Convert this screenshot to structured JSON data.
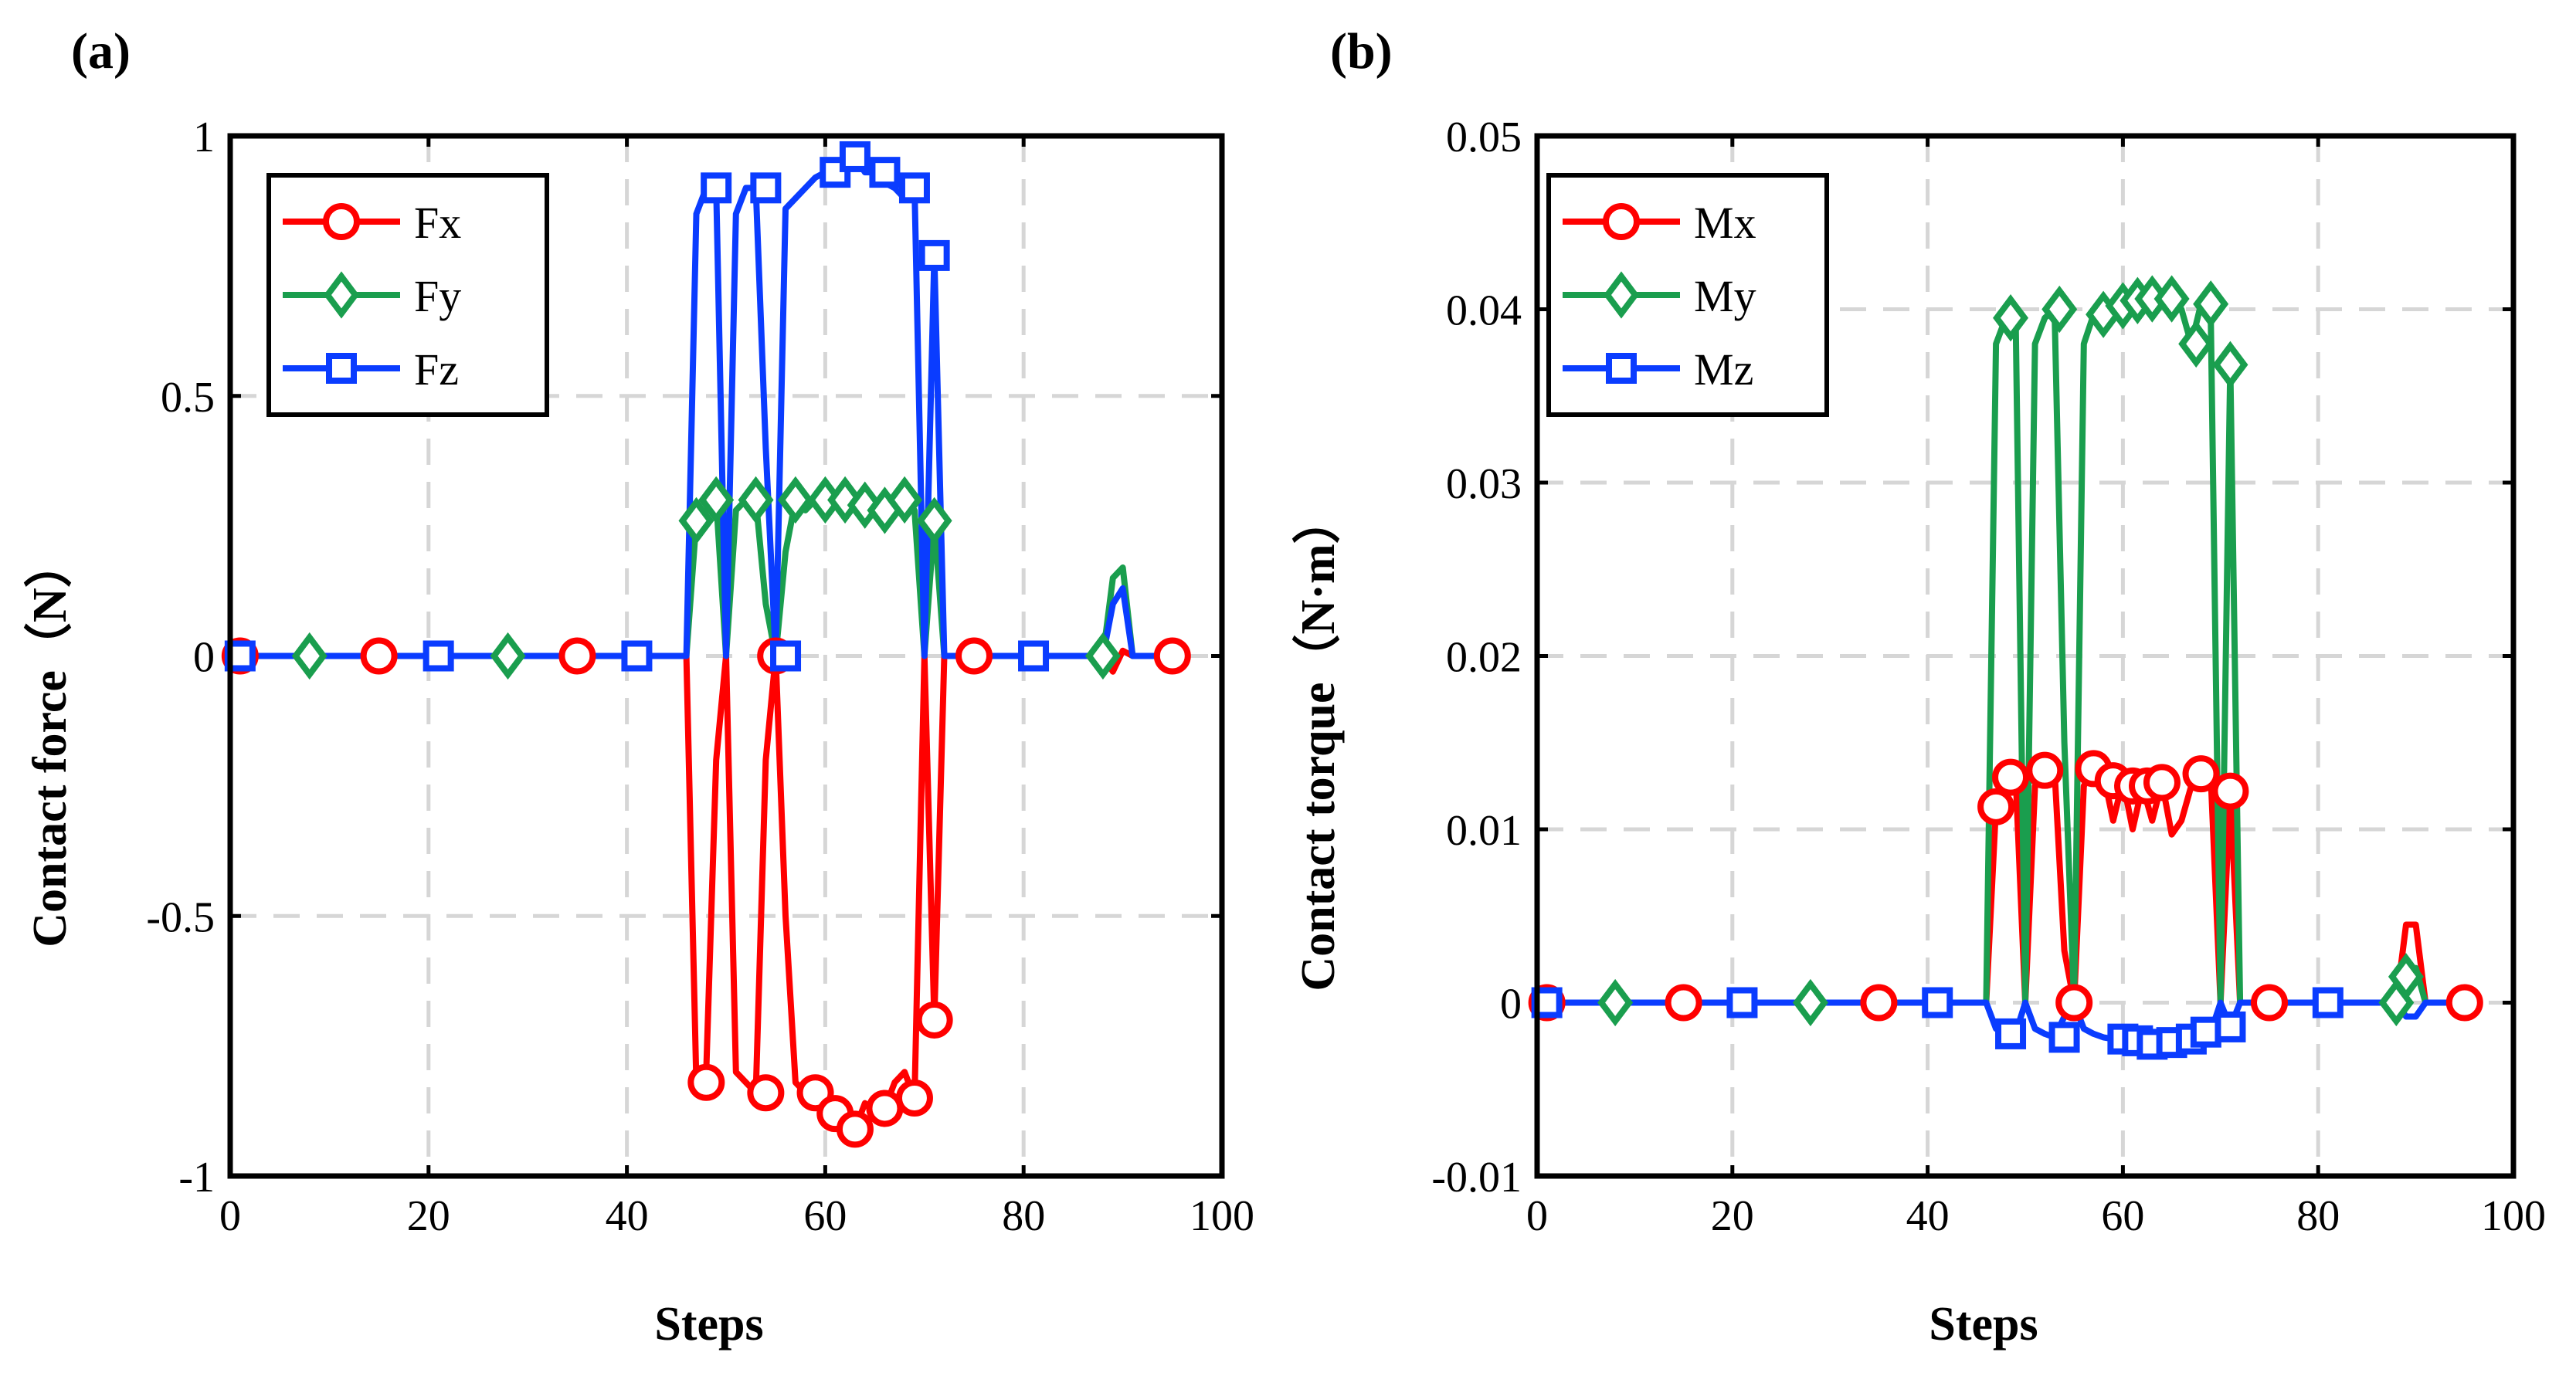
{
  "panels": [
    {
      "label": "(a)",
      "xlabel": "Steps",
      "ylabel": "Contact force（N）",
      "xticks": [
        "0",
        "20",
        "40",
        "60",
        "80",
        "100"
      ],
      "yticks": [
        "-1",
        "-0.5",
        "0",
        "0.5",
        "1"
      ]
    },
    {
      "label": "(b)",
      "xlabel": "Steps",
      "ylabel": "Contact torque（N·m）",
      "xticks": [
        "0",
        "20",
        "40",
        "60",
        "80",
        "100"
      ],
      "yticks": [
        "-0.01",
        "0",
        "0.01",
        "0.02",
        "0.03",
        "0.04",
        "0.05"
      ]
    }
  ],
  "chart_data": [
    {
      "type": "line",
      "title": "",
      "panel_label": "(a)",
      "xlabel": "Steps",
      "ylabel": "Contact force（N）",
      "xlim": [
        0,
        100
      ],
      "ylim": [
        -1,
        1
      ],
      "xticks": [
        0,
        20,
        40,
        60,
        80,
        100
      ],
      "yticks": [
        -1,
        -0.5,
        0,
        0.5,
        1
      ],
      "grid": true,
      "legend_position": "top-left",
      "series": [
        {
          "name": "Fx",
          "color": "#ff0000",
          "marker": "circle",
          "x": [
            1,
            15,
            35,
            46,
            47,
            48,
            49,
            50,
            51,
            52,
            53,
            54,
            55,
            56,
            57,
            58,
            59,
            60,
            61,
            62,
            63,
            64,
            65,
            66,
            67,
            68,
            69,
            70,
            71,
            72,
            75,
            88,
            89,
            90,
            91,
            95
          ],
          "y": [
            0,
            0,
            0,
            0,
            -0.82,
            -0.8,
            -0.2,
            0,
            -0.8,
            -0.82,
            -0.84,
            -0.2,
            0,
            -0.5,
            -0.82,
            -0.84,
            -0.86,
            -0.88,
            -0.88,
            -0.9,
            -0.91,
            -0.86,
            -0.88,
            -0.87,
            -0.82,
            -0.8,
            -0.85,
            0,
            -0.7,
            0,
            0,
            0,
            -0.03,
            0.01,
            0,
            0
          ],
          "markers": [
            [
              1,
              0
            ],
            [
              15,
              0
            ],
            [
              35,
              0
            ],
            [
              48,
              -0.82
            ],
            [
              54,
              -0.84
            ],
            [
              55,
              0
            ],
            [
              59,
              -0.84
            ],
            [
              61,
              -0.88
            ],
            [
              63,
              -0.91
            ],
            [
              66,
              -0.87
            ],
            [
              69,
              -0.85
            ],
            [
              71,
              -0.7
            ],
            [
              75,
              0
            ],
            [
              95,
              0
            ]
          ]
        },
        {
          "name": "Fy",
          "color": "#1a9e4e",
          "marker": "diamond",
          "x": [
            1,
            8,
            28,
            46,
            47,
            48,
            49,
            50,
            51,
            52,
            53,
            54,
            55,
            56,
            57,
            58,
            59,
            60,
            61,
            62,
            63,
            64,
            65,
            66,
            67,
            68,
            69,
            70,
            71,
            72,
            75,
            88,
            89,
            90,
            91,
            95
          ],
          "y": [
            0,
            0,
            0,
            0,
            0.26,
            0.28,
            0.3,
            0,
            0.28,
            0.3,
            0.3,
            0.1,
            0,
            0.2,
            0.3,
            0.28,
            0.3,
            0.28,
            0.3,
            0.28,
            0.3,
            0.27,
            0.28,
            0.28,
            0.3,
            0.28,
            0.28,
            0,
            0.26,
            0,
            0,
            0,
            0.15,
            0.17,
            0,
            0
          ],
          "markers": [
            [
              8,
              0
            ],
            [
              28,
              0
            ],
            [
              47,
              0.26
            ],
            [
              49,
              0.3
            ],
            [
              53,
              0.3
            ],
            [
              57,
              0.3
            ],
            [
              60,
              0.3
            ],
            [
              62,
              0.3
            ],
            [
              64,
              0.29
            ],
            [
              66,
              0.28
            ],
            [
              68,
              0.3
            ],
            [
              71,
              0.26
            ],
            [
              88,
              0
            ]
          ]
        },
        {
          "name": "Fz",
          "color": "#0a3cff",
          "marker": "square",
          "x": [
            1,
            21,
            41,
            46,
            47,
            48,
            49,
            50,
            51,
            52,
            53,
            54,
            55,
            56,
            57,
            58,
            59,
            60,
            61,
            62,
            63,
            64,
            65,
            66,
            67,
            68,
            69,
            70,
            71,
            72,
            75,
            81,
            88,
            89,
            90,
            91,
            95
          ],
          "y": [
            0,
            0,
            0,
            0,
            0.85,
            0.9,
            0.9,
            0,
            0.85,
            0.9,
            0.9,
            0.4,
            0,
            0.86,
            0.88,
            0.9,
            0.92,
            0.93,
            0.93,
            0.95,
            0.96,
            0.93,
            0.93,
            0.91,
            0.9,
            0.88,
            0.9,
            0,
            0.77,
            0,
            0,
            0,
            0,
            0.1,
            0.13,
            0,
            0
          ],
          "markers": [
            [
              1,
              0
            ],
            [
              21,
              0
            ],
            [
              41,
              0
            ],
            [
              49,
              0.9
            ],
            [
              54,
              0.9
            ],
            [
              56,
              0
            ],
            [
              61,
              0.93
            ],
            [
              63,
              0.96
            ],
            [
              66,
              0.93
            ],
            [
              69,
              0.9
            ],
            [
              71,
              0.77
            ],
            [
              81,
              0
            ]
          ]
        }
      ]
    },
    {
      "type": "line",
      "title": "",
      "panel_label": "(b)",
      "xlabel": "Steps",
      "ylabel": "Contact torque（N·m）",
      "xlim": [
        0,
        100
      ],
      "ylim": [
        -0.01,
        0.05
      ],
      "xticks": [
        0,
        20,
        40,
        60,
        80,
        100
      ],
      "yticks": [
        -0.01,
        0,
        0.01,
        0.02,
        0.03,
        0.04,
        0.05
      ],
      "grid": true,
      "legend_position": "top-left",
      "series": [
        {
          "name": "Mx",
          "color": "#ff0000",
          "marker": "circle",
          "x": [
            1,
            15,
            35,
            46,
            47,
            48,
            49,
            50,
            51,
            52,
            53,
            54,
            55,
            56,
            57,
            58,
            59,
            60,
            61,
            62,
            63,
            64,
            65,
            66,
            67,
            68,
            69,
            70,
            71,
            72,
            75,
            88,
            89,
            90,
            91,
            95
          ],
          "y": [
            0,
            0,
            0,
            0,
            0.0113,
            0.013,
            0.0132,
            0,
            0.0125,
            0.0134,
            0.0134,
            0.003,
            0,
            0.0125,
            0.0135,
            0.0132,
            0.0105,
            0.0128,
            0.01,
            0.0125,
            0.0105,
            0.0127,
            0.0097,
            0.0105,
            0.0125,
            0.0132,
            0.013,
            0,
            0.0122,
            0,
            0,
            0,
            0.0045,
            0.0045,
            0,
            0
          ],
          "markers": [
            [
              1,
              0
            ],
            [
              15,
              0
            ],
            [
              35,
              0
            ],
            [
              47,
              0.0113
            ],
            [
              48.5,
              0.013
            ],
            [
              52,
              0.0134
            ],
            [
              55,
              0
            ],
            [
              57,
              0.0135
            ],
            [
              59,
              0.0128
            ],
            [
              61,
              0.0125
            ],
            [
              62.5,
              0.0125
            ],
            [
              64,
              0.0127
            ],
            [
              68,
              0.0132
            ],
            [
              71,
              0.0122
            ],
            [
              75,
              0
            ],
            [
              95,
              0
            ]
          ]
        },
        {
          "name": "My",
          "color": "#1a9e4e",
          "marker": "diamond",
          "x": [
            1,
            8,
            28,
            46,
            47,
            48,
            49,
            50,
            51,
            52,
            53,
            54,
            55,
            56,
            57,
            58,
            59,
            60,
            61,
            62,
            63,
            64,
            65,
            66,
            67,
            68,
            69,
            70,
            71,
            72,
            75,
            88,
            89,
            90,
            91,
            95
          ],
          "y": [
            0,
            0,
            0,
            0,
            0.038,
            0.0395,
            0.04,
            0,
            0.038,
            0.0395,
            0.04,
            0.015,
            0,
            0.038,
            0.0397,
            0.04,
            0.0402,
            0.0405,
            0.0403,
            0.0405,
            0.0407,
            0.0405,
            0.0403,
            0.04,
            0.038,
            0.0403,
            0.0395,
            0,
            0.0368,
            0,
            0,
            0,
            0.0015,
            0.002,
            0,
            0
          ],
          "markers": [
            [
              8,
              0
            ],
            [
              28,
              0
            ],
            [
              48.5,
              0.0395
            ],
            [
              53.5,
              0.04
            ],
            [
              58,
              0.0397
            ],
            [
              60,
              0.0402
            ],
            [
              61.5,
              0.0405
            ],
            [
              63,
              0.0406
            ],
            [
              65,
              0.0406
            ],
            [
              67.5,
              0.038
            ],
            [
              69,
              0.0403
            ],
            [
              71,
              0.0368
            ],
            [
              88,
              0
            ],
            [
              89,
              0.0015
            ]
          ]
        },
        {
          "name": "Mz",
          "color": "#0a3cff",
          "marker": "square",
          "x": [
            1,
            21,
            41,
            46,
            47,
            48,
            49,
            50,
            51,
            52,
            53,
            54,
            55,
            56,
            57,
            58,
            59,
            60,
            61,
            62,
            63,
            64,
            65,
            66,
            67,
            68,
            69,
            70,
            71,
            72,
            75,
            81,
            88,
            89,
            90,
            91,
            95
          ],
          "y": [
            0,
            0,
            0,
            0,
            -0.0015,
            -0.0018,
            -0.0018,
            0,
            -0.0015,
            -0.0018,
            -0.002,
            -0.0008,
            0,
            -0.0015,
            -0.0018,
            -0.002,
            -0.0021,
            -0.0022,
            -0.0022,
            -0.0023,
            -0.0024,
            -0.0023,
            -0.0023,
            -0.0021,
            -0.002,
            -0.0018,
            -0.0017,
            0,
            -0.0014,
            0,
            0,
            0,
            0,
            -0.0008,
            -0.0008,
            0,
            0
          ],
          "markers": [
            [
              1,
              0
            ],
            [
              21,
              0
            ],
            [
              41,
              0
            ],
            [
              48.5,
              -0.0018
            ],
            [
              54,
              -0.002
            ],
            [
              60,
              -0.0021
            ],
            [
              61.5,
              -0.0022
            ],
            [
              63,
              -0.0024
            ],
            [
              65,
              -0.0023
            ],
            [
              67,
              -0.0021
            ],
            [
              68.5,
              -0.0017
            ],
            [
              71,
              -0.0014
            ],
            [
              81,
              0
            ]
          ]
        }
      ]
    }
  ]
}
